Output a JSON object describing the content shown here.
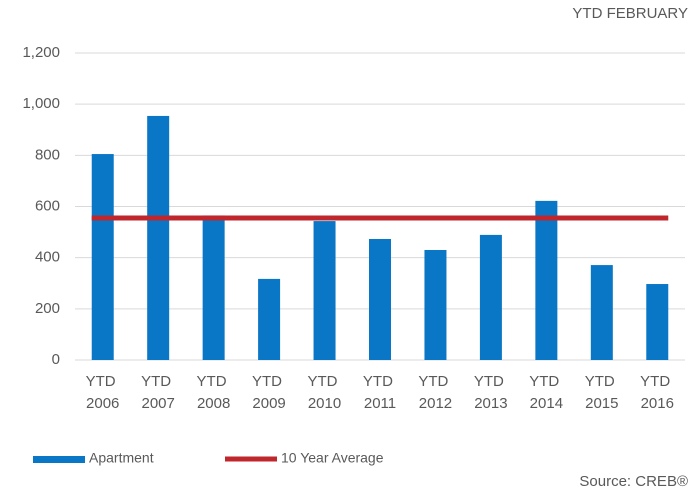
{
  "chart_data": {
    "type": "bar",
    "subtitle": "YTD FEBRUARY",
    "source": "Source: CREB®",
    "categories": [
      "YTD 2006",
      "YTD 2007",
      "YTD 2008",
      "YTD 2009",
      "YTD 2010",
      "YTD 2011",
      "YTD 2012",
      "YTD 2013",
      "YTD 2014",
      "YTD 2015",
      "YTD 2016"
    ],
    "series": [
      {
        "name": "Apartment",
        "type": "bar",
        "color": "#0a77c6",
        "values": [
          805,
          954,
          565,
          317,
          543,
          473,
          430,
          489,
          622,
          371,
          297
        ]
      },
      {
        "name": "10 Year Average",
        "type": "line",
        "color": "#c0272d",
        "values": [
          555,
          555,
          555,
          555,
          555,
          555,
          555,
          555,
          555,
          555,
          555
        ]
      }
    ],
    "ylim": [
      0,
      1200
    ],
    "yticks": [
      0,
      200,
      400,
      600,
      800,
      {
        "value": 1000,
        "label": "1,000"
      },
      {
        "value": 1200,
        "label": "1,200"
      }
    ],
    "grid": true
  }
}
